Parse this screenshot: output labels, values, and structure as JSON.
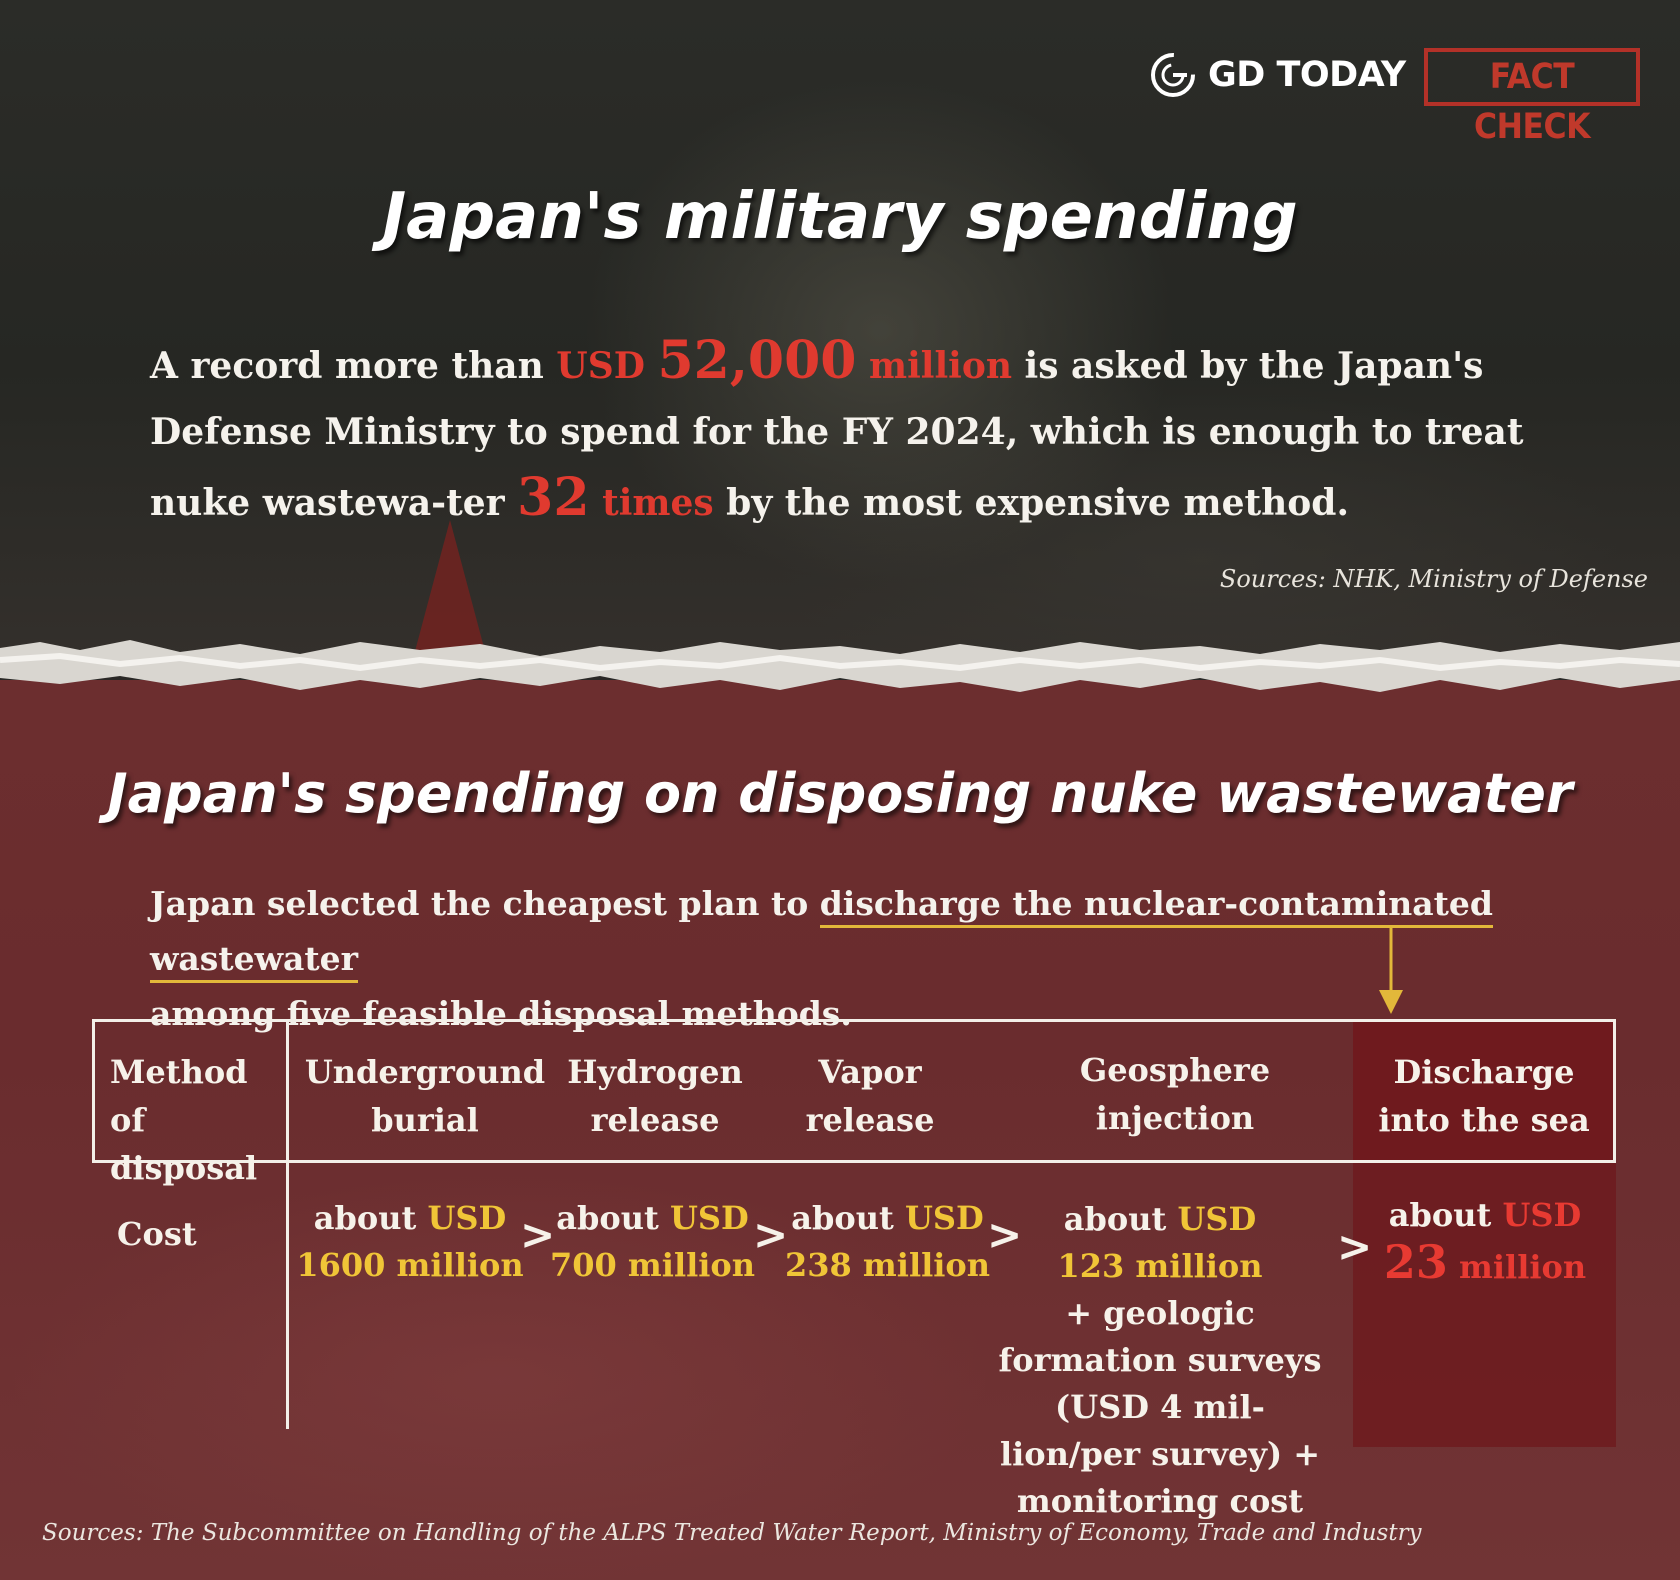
{
  "header": {
    "brand_name": "GD TODAY",
    "badge": "FACT CHECK"
  },
  "military": {
    "title": "Japan's military spending",
    "para_a": "A record more than ",
    "amount_usd": "USD",
    "amount_num": "52,000",
    "amount_unit": "million",
    "para_b": " is asked by the Japan's Defense Ministry to spend for the FY 2024, which is enough to treat nuke wastewa-ter ",
    "times_num": "32",
    "times_word": "times",
    "para_c": " by the most expensive method.",
    "sources": "Sources: NHK, Ministry of Defense"
  },
  "wastewater": {
    "title": "Japan's spending on disposing nuke wastewater",
    "intro_a": "Japan selected the cheapest plan to ",
    "intro_highlight": "discharge the nuclear-contaminated wastewater",
    "intro_b": "among five feasible disposal methods."
  },
  "table": {
    "row_header_method": "Method of disposal",
    "row_header_cost": "Cost",
    "methods": [
      {
        "name": "Underground burial",
        "prefix": "about",
        "usd": "USD",
        "amount": "1600 million",
        "extra": ""
      },
      {
        "name": "Hydrogen release",
        "prefix": "about",
        "usd": "USD",
        "amount": "700 million",
        "extra": ""
      },
      {
        "name": "Vapor release",
        "prefix": "about",
        "usd": "USD",
        "amount": "238 million",
        "extra": ""
      },
      {
        "name": "Geosphere injection",
        "prefix": "about",
        "usd": "USD",
        "amount": "123 million",
        "extra": "+ geologic formation surveys (USD 4 mil-lion/per survey) + monitoring cost"
      },
      {
        "name": "Discharge into the sea",
        "prefix": "about",
        "usd": "USD",
        "amount_num": "23",
        "amount_unit": "million",
        "extra": ""
      }
    ],
    "comparator": ">"
  },
  "footer": {
    "sources": "Sources: The Subcommittee on Handling of the ALPS Treated Water Report, Ministry of Economy, Trade and Industry"
  },
  "colors": {
    "accent_red": "#e03a2f",
    "accent_gold": "#f0c537",
    "bottom_bg": "#6c2e2f"
  }
}
